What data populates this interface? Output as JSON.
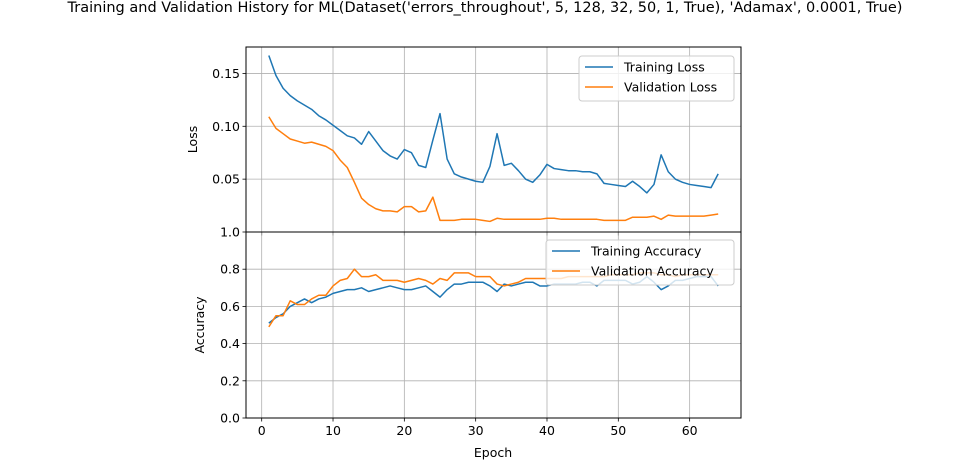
{
  "chart_data": {
    "type": "line",
    "title": "Training and Validation History for ML(Dataset('errors_throughout', 5, 128, 32, 50, 1, True), 'Adamax', 0.0001, True)",
    "xlabel": "Epoch",
    "xlim": [
      -2.2,
      67.2
    ],
    "xticks": [
      0,
      10,
      20,
      30,
      40,
      50,
      60
    ],
    "grid": true,
    "colors": {
      "training": "#1f77b4",
      "validation": "#ff7f0e"
    },
    "subplots": [
      {
        "ylabel": "Loss",
        "ylim": [
          0.0,
          0.175
        ],
        "yticks": [
          0.05,
          0.1,
          0.15
        ],
        "ytick_labels": [
          "0.05",
          "0.10",
          "0.15"
        ],
        "legend_position": "upper-right",
        "series": [
          {
            "name": "Training Loss",
            "values": [
              0.167,
              0.148,
              0.136,
              0.129,
              0.124,
              0.12,
              0.116,
              0.11,
              0.106,
              0.101,
              0.096,
              0.091,
              0.089,
              0.083,
              0.095,
              0.086,
              0.077,
              0.072,
              0.069,
              0.078,
              0.075,
              0.063,
              0.061,
              0.087,
              0.112,
              0.069,
              0.055,
              0.052,
              0.05,
              0.048,
              0.047,
              0.062,
              0.093,
              0.063,
              0.065,
              0.058,
              0.05,
              0.047,
              0.054,
              0.064,
              0.06,
              0.059,
              0.058,
              0.058,
              0.057,
              0.057,
              0.055,
              0.046,
              0.045,
              0.044,
              0.043,
              0.048,
              0.043,
              0.037,
              0.045,
              0.073,
              0.057,
              0.05,
              0.047,
              0.045,
              0.044,
              0.043,
              0.042,
              0.055
            ]
          },
          {
            "name": "Validation Loss",
            "values": [
              0.109,
              0.098,
              0.093,
              0.088,
              0.086,
              0.084,
              0.085,
              0.083,
              0.081,
              0.077,
              0.068,
              0.061,
              0.047,
              0.032,
              0.026,
              0.022,
              0.02,
              0.02,
              0.019,
              0.024,
              0.024,
              0.019,
              0.02,
              0.033,
              0.011,
              0.011,
              0.011,
              0.012,
              0.012,
              0.012,
              0.011,
              0.01,
              0.013,
              0.012,
              0.012,
              0.012,
              0.012,
              0.012,
              0.012,
              0.013,
              0.013,
              0.012,
              0.012,
              0.012,
              0.012,
              0.012,
              0.012,
              0.011,
              0.011,
              0.011,
              0.011,
              0.014,
              0.014,
              0.014,
              0.015,
              0.012,
              0.016,
              0.015,
              0.015,
              0.015,
              0.015,
              0.015,
              0.016,
              0.017
            ]
          }
        ]
      },
      {
        "ylabel": "Accuracy",
        "ylim": [
          0.0,
          1.0
        ],
        "yticks": [
          0.0,
          0.2,
          0.4,
          0.6,
          0.8,
          1.0
        ],
        "ytick_labels": [
          "0.0",
          "0.2",
          "0.4",
          "0.6",
          "0.8",
          "1.0"
        ],
        "legend_position": "upper-right",
        "series": [
          {
            "name": "Training Accuracy",
            "values": [
              0.51,
              0.54,
              0.56,
              0.6,
              0.62,
              0.64,
              0.62,
              0.64,
              0.65,
              0.67,
              0.68,
              0.69,
              0.69,
              0.7,
              0.68,
              0.69,
              0.7,
              0.71,
              0.7,
              0.69,
              0.69,
              0.7,
              0.71,
              0.68,
              0.65,
              0.69,
              0.72,
              0.72,
              0.73,
              0.73,
              0.73,
              0.71,
              0.68,
              0.72,
              0.71,
              0.72,
              0.73,
              0.73,
              0.71,
              0.71,
              0.72,
              0.72,
              0.72,
              0.72,
              0.73,
              0.73,
              0.71,
              0.74,
              0.74,
              0.74,
              0.74,
              0.72,
              0.73,
              0.76,
              0.73,
              0.69,
              0.71,
              0.74,
              0.74,
              0.75,
              0.76,
              0.76,
              0.76,
              0.71
            ]
          },
          {
            "name": "Validation Accuracy",
            "values": [
              0.49,
              0.55,
              0.55,
              0.63,
              0.61,
              0.61,
              0.64,
              0.66,
              0.66,
              0.71,
              0.74,
              0.75,
              0.8,
              0.76,
              0.76,
              0.77,
              0.74,
              0.74,
              0.74,
              0.73,
              0.74,
              0.75,
              0.74,
              0.72,
              0.75,
              0.74,
              0.78,
              0.78,
              0.78,
              0.76,
              0.76,
              0.76,
              0.72,
              0.71,
              0.72,
              0.73,
              0.75,
              0.75,
              0.75,
              0.75,
              0.75,
              0.75,
              0.76,
              0.76,
              0.76,
              0.76,
              0.76,
              0.76,
              0.77,
              0.77,
              0.77,
              0.77,
              0.78,
              0.78,
              0.78,
              0.77,
              0.77,
              0.76,
              0.77,
              0.77,
              0.77,
              0.77,
              0.77,
              0.77
            ]
          }
        ]
      }
    ]
  }
}
